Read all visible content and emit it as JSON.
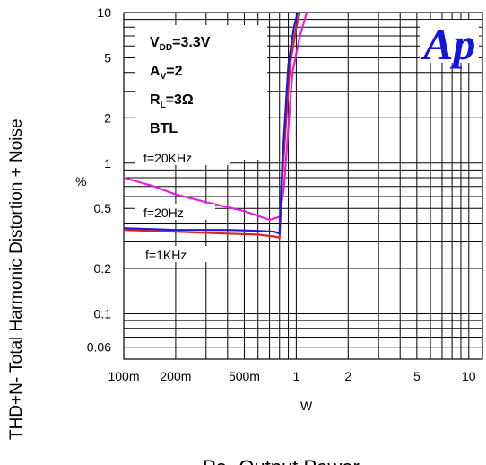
{
  "chart_data": {
    "type": "line",
    "x_scale": "log",
    "y_scale": "log",
    "xlim": [
      0.1,
      12
    ],
    "ylim": [
      0.05,
      10
    ],
    "x_ticks": [
      {
        "value": 0.1,
        "label": "100m"
      },
      {
        "value": 0.2,
        "label": "200m"
      },
      {
        "value": 0.5,
        "label": "500m"
      },
      {
        "value": 1,
        "label": "1"
      },
      {
        "value": 2,
        "label": "2"
      },
      {
        "value": 5,
        "label": "5"
      },
      {
        "value": 10,
        "label": "10"
      }
    ],
    "y_ticks": [
      {
        "value": 10,
        "label": "10"
      },
      {
        "value": 5,
        "label": "5"
      },
      {
        "value": 2,
        "label": "2"
      },
      {
        "value": 1,
        "label": "1"
      },
      {
        "value": 0.5,
        "label": "0.5"
      },
      {
        "value": 0.2,
        "label": "0.2"
      },
      {
        "value": 0.1,
        "label": "0.1"
      },
      {
        "value": 0.06,
        "label": "0.06"
      }
    ],
    "grid": true,
    "ylabel": "THD+N- Total Harmonic Distortion + Noise",
    "ylabel_unit": "%",
    "xlabel_unit": "W",
    "xlabel": "Po- Output Power",
    "info_lines": [
      {
        "main": "V",
        "sub": "DD",
        "rest": "=3.3V"
      },
      {
        "main": "A",
        "sub": "V",
        "rest": "=2"
      },
      {
        "main": "R",
        "sub": "L",
        "rest": "=3Ω"
      },
      {
        "main": "BTL",
        "sub": "",
        "rest": ""
      }
    ],
    "logo_text": "Ap",
    "series": [
      {
        "label": "f=20KHz",
        "color": "#e020e0",
        "points": [
          [
            0.1,
            0.8
          ],
          [
            0.15,
            0.7
          ],
          [
            0.2,
            0.62
          ],
          [
            0.3,
            0.55
          ],
          [
            0.5,
            0.48
          ],
          [
            0.7,
            0.42
          ],
          [
            0.8,
            0.44
          ],
          [
            0.85,
            0.7
          ],
          [
            0.95,
            4
          ],
          [
            1.05,
            7
          ],
          [
            1.15,
            10
          ]
        ]
      },
      {
        "label": "f=20Hz",
        "color": "#e02020",
        "points": [
          [
            0.1,
            0.36
          ],
          [
            0.2,
            0.35
          ],
          [
            0.4,
            0.34
          ],
          [
            0.6,
            0.335
          ],
          [
            0.75,
            0.325
          ],
          [
            0.8,
            0.32
          ],
          [
            0.83,
            0.8
          ],
          [
            0.92,
            4.5
          ],
          [
            1.0,
            8
          ],
          [
            1.05,
            10
          ]
        ]
      },
      {
        "label": "f=1KHz",
        "color": "#1a1ae0",
        "points": [
          [
            0.1,
            0.37
          ],
          [
            0.2,
            0.36
          ],
          [
            0.4,
            0.36
          ],
          [
            0.6,
            0.355
          ],
          [
            0.75,
            0.35
          ],
          [
            0.8,
            0.34
          ],
          [
            0.83,
            1.0
          ],
          [
            0.9,
            4.5
          ],
          [
            0.97,
            8
          ],
          [
            1.02,
            10
          ]
        ]
      }
    ]
  }
}
